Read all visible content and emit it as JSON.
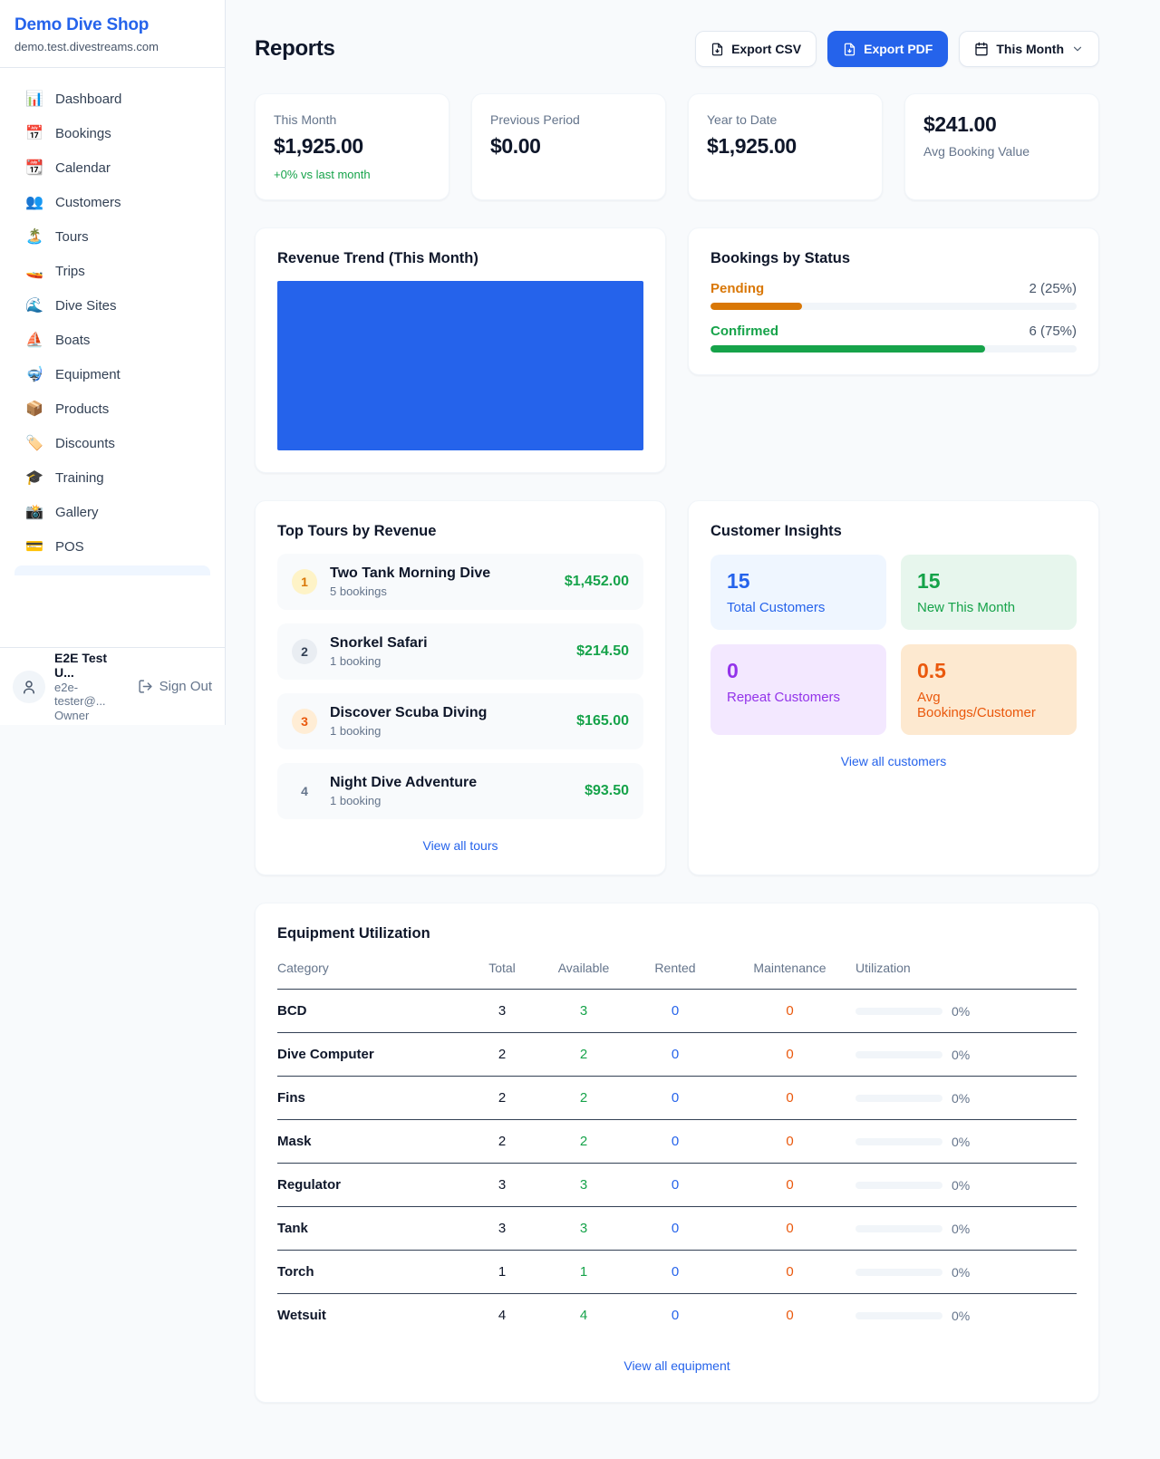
{
  "colors": {
    "accent": "#2563eb",
    "green": "#16a34a",
    "amber": "#d97706",
    "orange": "#ea580c",
    "purple": "#9333ea"
  },
  "sidebar": {
    "brand": {
      "name": "Demo Dive Shop",
      "domain": "demo.test.divestreams.com"
    },
    "nav": [
      {
        "icon": "📊",
        "label": "Dashboard"
      },
      {
        "icon": "📅",
        "label": "Bookings"
      },
      {
        "icon": "📆",
        "label": "Calendar"
      },
      {
        "icon": "👥",
        "label": "Customers"
      },
      {
        "icon": "🏝️",
        "label": "Tours"
      },
      {
        "icon": "🚤",
        "label": "Trips"
      },
      {
        "icon": "🌊",
        "label": "Dive Sites"
      },
      {
        "icon": "⛵",
        "label": "Boats"
      },
      {
        "icon": "🤿",
        "label": "Equipment"
      },
      {
        "icon": "📦",
        "label": "Products"
      },
      {
        "icon": "🏷️",
        "label": "Discounts"
      },
      {
        "icon": "🎓",
        "label": "Training"
      },
      {
        "icon": "📸",
        "label": "Gallery"
      },
      {
        "icon": "💳",
        "label": "POS"
      }
    ],
    "user": {
      "name": "E2E Test U...",
      "email": "e2e-tester@...",
      "role": "Owner",
      "signout_label": "Sign Out"
    }
  },
  "header": {
    "title": "Reports",
    "export_csv_label": "Export CSV",
    "export_pdf_label": "Export PDF",
    "period_label": "This Month"
  },
  "stats": [
    {
      "label": "This Month",
      "value": "$1,925.00",
      "delta": "+0% vs last month"
    },
    {
      "label": "Previous Period",
      "value": "$0.00"
    },
    {
      "label": "Year to Date",
      "value": "$1,925.00"
    },
    {
      "label": "Avg Booking Value",
      "value": "$241.00"
    }
  ],
  "revenue_trend": {
    "title": "Revenue Trend (This Month)"
  },
  "bookings_by_status": {
    "title": "Bookings by Status",
    "rows": [
      {
        "label": "Pending",
        "value": "2 (25%)",
        "pct": 25
      },
      {
        "label": "Confirmed",
        "value": "6 (75%)",
        "pct": 75
      }
    ]
  },
  "top_tours": {
    "title": "Top Tours by Revenue",
    "items": [
      {
        "rank": "1",
        "name": "Two Tank Morning Dive",
        "bookings": "5 bookings",
        "revenue": "$1,452.00"
      },
      {
        "rank": "2",
        "name": "Snorkel Safari",
        "bookings": "1 booking",
        "revenue": "$214.50"
      },
      {
        "rank": "3",
        "name": "Discover Scuba Diving",
        "bookings": "1 booking",
        "revenue": "$165.00"
      },
      {
        "rank": "4",
        "name": "Night Dive Adventure",
        "bookings": "1 booking",
        "revenue": "$93.50"
      }
    ],
    "link": "View all tours"
  },
  "customer_insights": {
    "title": "Customer Insights",
    "tiles": [
      {
        "value": "15",
        "label": "Total Customers"
      },
      {
        "value": "15",
        "label": "New This Month"
      },
      {
        "value": "0",
        "label": "Repeat Customers"
      },
      {
        "value": "0.5",
        "label": "Avg Bookings/Customer"
      }
    ],
    "link": "View all customers"
  },
  "equipment": {
    "title": "Equipment Utilization",
    "columns": [
      "Category",
      "Total",
      "Available",
      "Rented",
      "Maintenance",
      "Utilization"
    ],
    "rows": [
      {
        "category": "BCD",
        "total": "3",
        "available": "3",
        "rented": "0",
        "maintenance": "0",
        "utilization": "0%"
      },
      {
        "category": "Dive Computer",
        "total": "2",
        "available": "2",
        "rented": "0",
        "maintenance": "0",
        "utilization": "0%"
      },
      {
        "category": "Fins",
        "total": "2",
        "available": "2",
        "rented": "0",
        "maintenance": "0",
        "utilization": "0%"
      },
      {
        "category": "Mask",
        "total": "2",
        "available": "2",
        "rented": "0",
        "maintenance": "0",
        "utilization": "0%"
      },
      {
        "category": "Regulator",
        "total": "3",
        "available": "3",
        "rented": "0",
        "maintenance": "0",
        "utilization": "0%"
      },
      {
        "category": "Tank",
        "total": "3",
        "available": "3",
        "rented": "0",
        "maintenance": "0",
        "utilization": "0%"
      },
      {
        "category": "Torch",
        "total": "1",
        "available": "1",
        "rented": "0",
        "maintenance": "0",
        "utilization": "0%"
      },
      {
        "category": "Wetsuit",
        "total": "4",
        "available": "4",
        "rented": "0",
        "maintenance": "0",
        "utilization": "0%"
      }
    ],
    "link": "View all equipment"
  }
}
